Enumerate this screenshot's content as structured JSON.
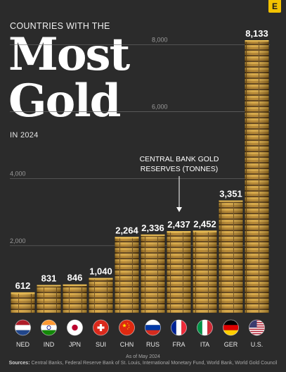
{
  "brand": {
    "logo_letter": "E"
  },
  "header": {
    "subtitle": "COUNTRIES WITH THE",
    "title_line1": "Most",
    "title_line2": "Gold",
    "year_label": "IN 2024"
  },
  "annotation": {
    "line1": "CENTRAL BANK GOLD",
    "line2": "RESERVES (TONNES)"
  },
  "footer": {
    "as_of": "As of May 2024",
    "sources_label": "Sources:",
    "sources_text": "Central Banks, Federal Reserve Bank of St. Louis, International Monetary Fund, World Bank, World Gold Council"
  },
  "colors": {
    "background": "#2b2b2b",
    "gold_light": "#c9962e",
    "gold_dark": "#6e4a12",
    "gridline": "#6a6a6a"
  },
  "chart_data": {
    "type": "bar",
    "categories": [
      "NED",
      "IND",
      "JPN",
      "SUI",
      "CHN",
      "RUS",
      "FRA",
      "ITA",
      "GER",
      "U.S."
    ],
    "values": [
      612,
      831,
      846,
      1040,
      2264,
      2336,
      2437,
      2452,
      3351,
      8133
    ],
    "value_labels": [
      "612",
      "831",
      "846",
      "1,040",
      "2,264",
      "2,336",
      "2,437",
      "2,452",
      "3,351",
      "8,133"
    ],
    "ylim": [
      0,
      8500
    ],
    "yticks": [
      2000,
      4000,
      6000,
      8000
    ],
    "ytick_labels": [
      "2,000",
      "4,000",
      "6,000",
      "8,000"
    ],
    "grid": true,
    "flags": [
      "flag-netherlands",
      "flag-india",
      "flag-japan",
      "flag-switzerland",
      "flag-china",
      "flag-russia",
      "flag-france",
      "flag-italy",
      "flag-germany",
      "flag-united-states"
    ]
  }
}
